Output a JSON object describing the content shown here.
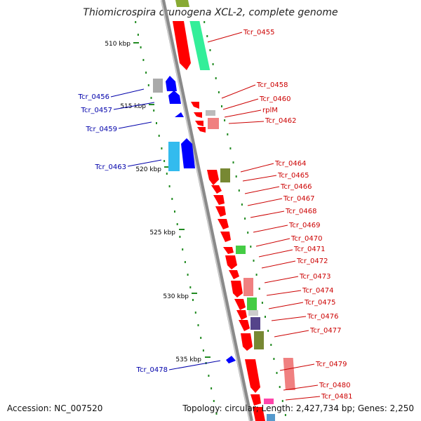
{
  "title": "Thiomicrospira crunogena XCL-2, complete genome",
  "accession": "Accession: NC_007520",
  "info": "Topology: circular; Length: 2,427,734 bp; Genes: 2,250",
  "colors": {
    "forward_label": "#cc0000",
    "reverse_label": "#0000aa",
    "backbone": "#8a8a8a",
    "tick": "#228b22"
  },
  "scale_labels": [
    "510 kbp",
    "515 kbp",
    "520 kbp",
    "525 kbp",
    "530 kbp",
    "535 kbp"
  ],
  "forward_labels": [
    "Tcr_0455",
    "Tcr_0458",
    "Tcr_0460",
    "rplM",
    "Tcr_0462",
    "Tcr_0464",
    "Tcr_0465",
    "Tcr_0466",
    "Tcr_0467",
    "Tcr_0468",
    "Tcr_0469",
    "Tcr_0470",
    "Tcr_0471",
    "Tcr_0472",
    "Tcr_0473",
    "Tcr_0474",
    "Tcr_0475",
    "Tcr_0476",
    "Tcr_0477",
    "Tcr_0479",
    "Tcr_0480",
    "Tcr_0481"
  ],
  "reverse_labels": [
    "Tcr_0456",
    "Tcr_0457",
    "Tcr_0459",
    "Tcr_0463",
    "Tcr_0478"
  ]
}
